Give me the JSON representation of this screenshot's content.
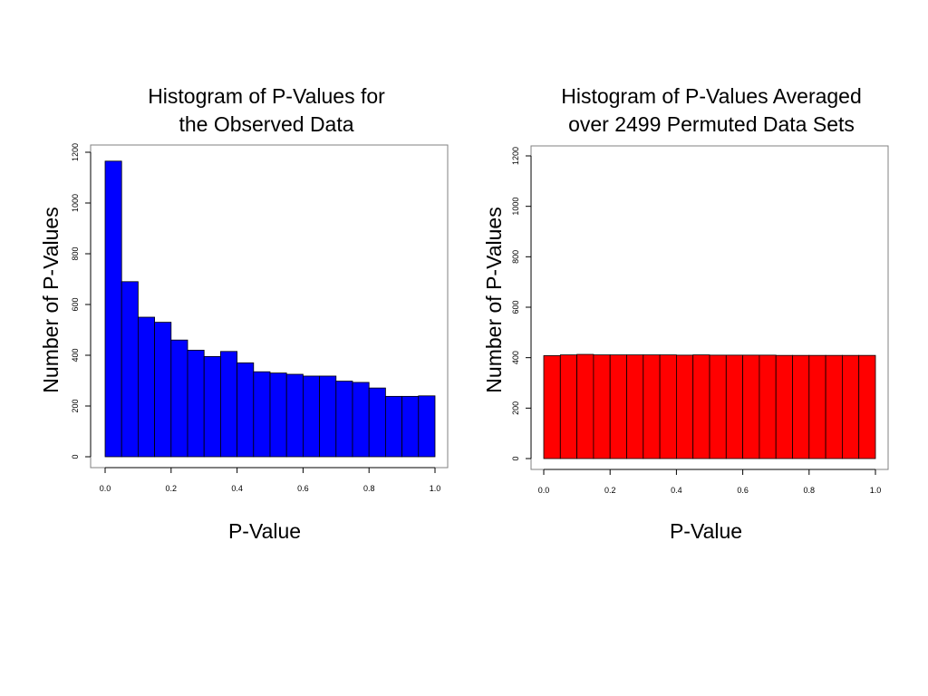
{
  "chart_data": [
    {
      "type": "bar",
      "title_lines": [
        "Histogram of P-Values for",
        "the Observed Data"
      ],
      "xlabel": "P-Value",
      "ylabel": "Number of P-Values",
      "bar_color": "#0000ff",
      "bin_edges": [
        0.0,
        0.05,
        0.1,
        0.15,
        0.2,
        0.25,
        0.3,
        0.35,
        0.4,
        0.45,
        0.5,
        0.55,
        0.6,
        0.65,
        0.7,
        0.75,
        0.8,
        0.85,
        0.9,
        0.95,
        1.0
      ],
      "values": [
        1165,
        690,
        550,
        530,
        460,
        420,
        395,
        415,
        370,
        335,
        330,
        325,
        318,
        318,
        298,
        293,
        271,
        238,
        238,
        240
      ],
      "xlim": [
        0.0,
        1.0
      ],
      "ylim": [
        0,
        1200
      ],
      "xticks": [
        0.0,
        0.2,
        0.4,
        0.6,
        0.8,
        1.0
      ],
      "xtick_labels": [
        "0.0",
        "0.2",
        "0.4",
        "0.6",
        "0.8",
        "1.0"
      ],
      "yticks": [
        0,
        200,
        400,
        600,
        800,
        1000,
        1200
      ],
      "ytick_labels": [
        "0",
        "200",
        "400",
        "600",
        "800",
        "1000",
        "1200"
      ],
      "grid": false,
      "legend": "none"
    },
    {
      "type": "bar",
      "title_lines": [
        "Histogram of P-Values Averaged",
        "over 2499 Permuted Data Sets"
      ],
      "xlabel": "P-Value",
      "ylabel": "Number of P-Values",
      "bar_color": "#ff0000",
      "bin_edges": [
        0.0,
        0.05,
        0.1,
        0.15,
        0.2,
        0.25,
        0.3,
        0.35,
        0.4,
        0.45,
        0.5,
        0.55,
        0.6,
        0.65,
        0.7,
        0.75,
        0.8,
        0.85,
        0.9,
        0.95,
        1.0
      ],
      "values": [
        408,
        411,
        413,
        411,
        411,
        411,
        411,
        411,
        410,
        411,
        410,
        410,
        410,
        410,
        409,
        409,
        409,
        409,
        409,
        409
      ],
      "xlim": [
        0.0,
        1.0
      ],
      "ylim": [
        0,
        1200
      ],
      "xticks": [
        0.0,
        0.2,
        0.4,
        0.6,
        0.8,
        1.0
      ],
      "xtick_labels": [
        "0.0",
        "0.2",
        "0.4",
        "0.6",
        "0.8",
        "1.0"
      ],
      "yticks": [
        0,
        200,
        400,
        600,
        800,
        1000,
        1200
      ],
      "ytick_labels": [
        "0",
        "200",
        "400",
        "600",
        "800",
        "1000",
        "1200"
      ],
      "grid": false,
      "legend": "none"
    }
  ]
}
